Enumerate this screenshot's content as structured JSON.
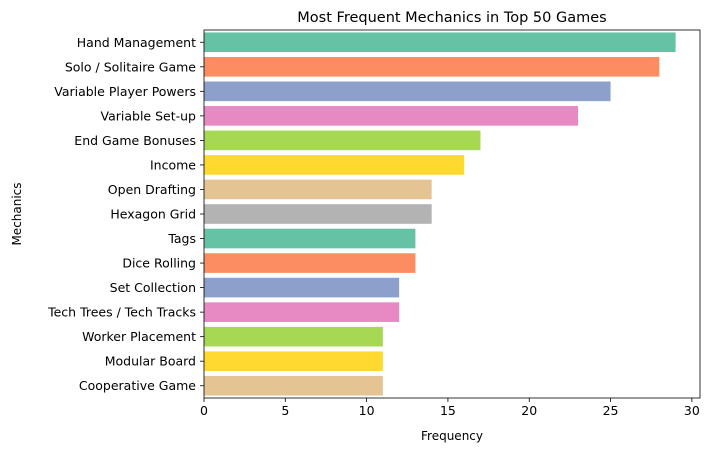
{
  "chart_data": {
    "type": "bar",
    "orientation": "horizontal",
    "title": "Most Frequent Mechanics in Top 50 Games",
    "xlabel": "Frequency",
    "ylabel": "Mechanics",
    "xlim": [
      0,
      30.5
    ],
    "xticks": [
      0,
      5,
      10,
      15,
      20,
      25,
      30
    ],
    "grid": false,
    "categories": [
      "Hand Management",
      "Solo / Solitaire Game",
      "Variable Player Powers",
      "Variable Set-up",
      "End Game Bonuses",
      "Income",
      "Open Drafting",
      "Hexagon Grid",
      "Tags",
      "Dice Rolling",
      "Set Collection",
      "Tech Trees / Tech Tracks",
      "Worker Placement",
      "Modular Board",
      "Cooperative Game"
    ],
    "values": [
      29,
      28,
      25,
      23,
      17,
      16,
      14,
      14,
      13,
      13,
      12,
      12,
      11,
      11,
      11
    ],
    "colors": [
      "#66c2a5",
      "#fc8d62",
      "#8da0cb",
      "#e78ac3",
      "#a6d854",
      "#ffd92f",
      "#e5c494",
      "#b3b3b3",
      "#66c2a5",
      "#fc8d62",
      "#8da0cb",
      "#e78ac3",
      "#a6d854",
      "#ffd92f",
      "#e5c494"
    ]
  }
}
